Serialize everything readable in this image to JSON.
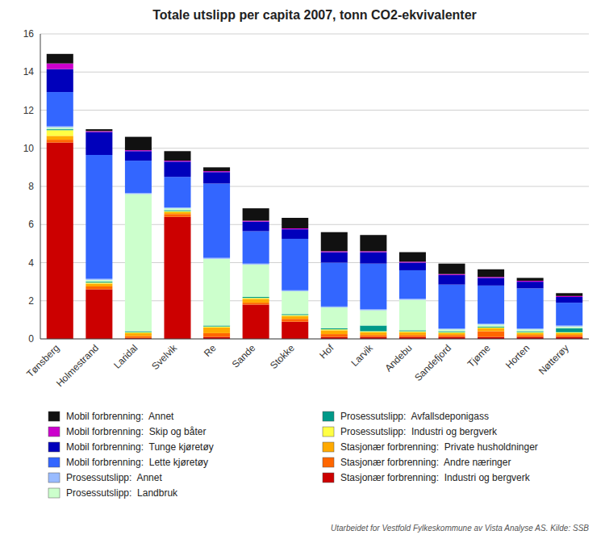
{
  "chart_data": {
    "type": "bar",
    "stacked": true,
    "grid": true,
    "title": "Totale utslipp per capita 2007, tonn CO2-ekvivalenter",
    "categories": [
      "Tønsberg",
      "Holmestrand",
      "Laridal",
      "Svelvik",
      "Re",
      "Sande",
      "Stokke",
      "Hof",
      "Larvik",
      "Andebu",
      "Sandefjord",
      "Tjøme",
      "Horten",
      "Nøtterøy"
    ],
    "series": [
      {
        "name": "Stasjonær forbrenning:  Industri og bergverk",
        "color": "#CC0000",
        "values": [
          10.3,
          2.6,
          0.05,
          6.4,
          0.1,
          1.8,
          0.9,
          0.1,
          0.1,
          0.1,
          0.1,
          0.1,
          0.1,
          0.1
        ]
      },
      {
        "name": "Stasjonær forbrenning:  Andre næringer",
        "color": "#FF6600",
        "values": [
          0.15,
          0.15,
          0.1,
          0.15,
          0.2,
          0.1,
          0.15,
          0.15,
          0.1,
          0.1,
          0.1,
          0.3,
          0.1,
          0.1
        ]
      },
      {
        "name": "Stasjonær forbrenning:  Private husholdninger",
        "color": "#FFAA00",
        "values": [
          0.2,
          0.15,
          0.15,
          0.1,
          0.3,
          0.2,
          0.15,
          0.2,
          0.15,
          0.15,
          0.1,
          0.15,
          0.1,
          0.1
        ]
      },
      {
        "name": "Prosessutslipp:  Industri og bergverk",
        "color": "#FFFF44",
        "values": [
          0.3,
          0.05,
          0.05,
          0.05,
          0.05,
          0.05,
          0.05,
          0.05,
          0.05,
          0.05,
          0.05,
          0.05,
          0.05,
          0.05
        ]
      },
      {
        "name": "Prosessutslipp:  Avfallsdeponigass",
        "color": "#009988",
        "values": [
          0.05,
          0.05,
          0.05,
          0.05,
          0.05,
          0.05,
          0.05,
          0.05,
          0.3,
          0.05,
          0.05,
          0.05,
          0.05,
          0.2
        ]
      },
      {
        "name": "Prosessutslipp:  Landbruk",
        "color": "#CCFFCC",
        "values": [
          0.1,
          0.1,
          7.2,
          0.1,
          3.5,
          1.7,
          1.2,
          1.1,
          0.8,
          1.6,
          0.1,
          0.1,
          0.1,
          0.1
        ]
      },
      {
        "name": "Prosessutslipp:  Annet",
        "color": "#99BBFF",
        "values": [
          0.05,
          0.05,
          0.05,
          0.05,
          0.05,
          0.05,
          0.05,
          0.05,
          0.05,
          0.05,
          0.05,
          0.05,
          0.05,
          0.05
        ]
      },
      {
        "name": "Mobil forbrenning:  Lette kjøretøy",
        "color": "#3366FF",
        "values": [
          1.8,
          6.5,
          1.7,
          1.6,
          3.9,
          1.7,
          2.7,
          2.3,
          2.4,
          1.5,
          2.3,
          2.0,
          2.1,
          1.2
        ]
      },
      {
        "name": "Mobil forbrenning:  Tunge kjøretøy",
        "color": "#0000BB",
        "values": [
          1.2,
          1.2,
          0.5,
          0.8,
          0.6,
          0.5,
          0.5,
          0.55,
          0.6,
          0.4,
          0.5,
          0.4,
          0.35,
          0.3
        ]
      },
      {
        "name": "Mobil forbrenning:  Skip og båter",
        "color": "#CC00CC",
        "values": [
          0.3,
          0.05,
          0.05,
          0.05,
          0.05,
          0.05,
          0.05,
          0.05,
          0.05,
          0.05,
          0.05,
          0.05,
          0.05,
          0.05
        ]
      },
      {
        "name": "Mobil forbrenning:  Annet",
        "color": "#111111",
        "values": [
          0.5,
          0.1,
          0.7,
          0.5,
          0.2,
          0.65,
          0.55,
          1.0,
          0.85,
          0.5,
          0.55,
          0.4,
          0.15,
          0.15
        ]
      }
    ],
    "ylim": [
      0,
      16
    ],
    "yticks": [
      0,
      2,
      4,
      6,
      8,
      10,
      12,
      14,
      16
    ],
    "footnote": "Utarbeidet for Vestfold Fylkeskommune av Vista Analyse AS. Kilde: SSB"
  }
}
